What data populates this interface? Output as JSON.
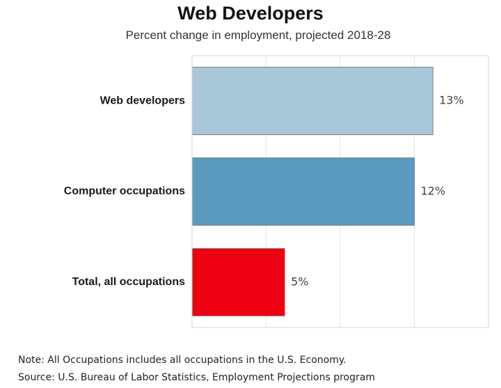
{
  "header": {
    "title": "Web Developers",
    "subtitle": "Percent change in employment, projected 2018-28"
  },
  "footer": {
    "note": "Note: All Occupations includes all occupations in the U.S. Economy.",
    "source": "Source: U.S. Bureau of Labor Statistics, Employment Projections program"
  },
  "chart_data": {
    "type": "bar",
    "orientation": "horizontal",
    "title": "Web Developers",
    "subtitle": "Percent change in employment, projected 2018-28",
    "categories": [
      "Web developers",
      "Computer occupations",
      "Total, all occupations"
    ],
    "values": [
      13,
      12,
      5
    ],
    "value_labels": [
      "13%",
      "12%",
      "5%"
    ],
    "unit": "%",
    "xlim": [
      0,
      16
    ],
    "grid": true,
    "legend": "none",
    "colors": [
      "#a8c8da",
      "#5b9bbf",
      "#ee0011"
    ]
  }
}
